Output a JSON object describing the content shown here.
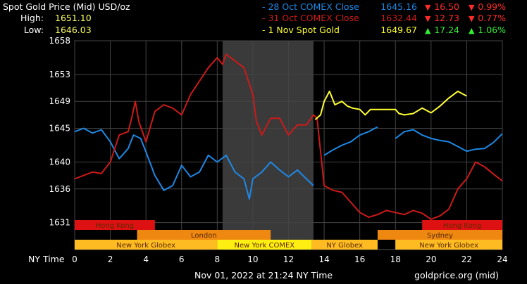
{
  "header": {
    "title": "Spot Gold Price (Mid) USD/oz",
    "high_label": "High:",
    "high_value": "1651.10",
    "low_label": "Low:",
    "low_value": "1646.03"
  },
  "legend": [
    {
      "name": "- 28 Oct COMEX Close",
      "price": "1645.16",
      "arrow": "▼",
      "change": "16.50",
      "pct_arrow": "▼",
      "pct": "0.99%",
      "color": "#1e88e5",
      "change_color": "#ff2a2a"
    },
    {
      "name": "- 31 Oct COMEX Close",
      "price": "1632.44",
      "arrow": "▼",
      "change": "12.73",
      "pct_arrow": "▼",
      "pct": "0.77%",
      "color": "#cc1a1a",
      "change_color": "#ff2a2a"
    },
    {
      "name": "- 1 Nov Spot Gold",
      "price": "1649.67",
      "arrow": "▲",
      "change": "17.24",
      "pct_arrow": "▲",
      "pct": "1.06%",
      "color": "#ffff33",
      "change_color": "#33ee33"
    }
  ],
  "footer": {
    "axis_title": "NY Time",
    "timestamp": "Nov 01, 2022 at 21:24 NY Time",
    "source": "goldprice.org (mid)"
  },
  "sessions": [
    {
      "name": "Hong Kong",
      "start": 0,
      "end": 4.5,
      "row": 0,
      "color": "#dd1111"
    },
    {
      "name": "Hong Kong",
      "start": 19.5,
      "end": 24,
      "row": 0,
      "color": "#dd1111"
    },
    {
      "name": "London",
      "start": 3.5,
      "end": 11,
      "row": 1,
      "color": "#ee8811"
    },
    {
      "name": "Sydney",
      "start": 17,
      "end": 24,
      "row": 1,
      "color": "#ee8811"
    },
    {
      "name": "New York Globex",
      "start": 0,
      "end": 8,
      "row": 2,
      "color": "#ffbb22"
    },
    {
      "name": "New York COMEX",
      "start": 8,
      "end": 13.3,
      "row": 2,
      "color": "#ffee11"
    },
    {
      "name": "NY Globex",
      "start": 13.3,
      "end": 17,
      "row": 2,
      "color": "#ffbb22"
    },
    {
      "name": "New York Globex",
      "start": 18,
      "end": 24,
      "row": 2,
      "color": "#ffbb22"
    }
  ],
  "chart_data": {
    "type": "line",
    "xlim": [
      0,
      24
    ],
    "ylim": [
      1627,
      1658
    ],
    "x_ticks": [
      0,
      2,
      4,
      6,
      8,
      10,
      12,
      14,
      16,
      18,
      20,
      22,
      24
    ],
    "y_ticks": [
      1631,
      1636,
      1640,
      1645,
      1649,
      1653,
      1658
    ],
    "comex_shade": [
      8.3,
      13.4
    ],
    "grid": true,
    "series": [
      {
        "name": "28 Oct COMEX Close",
        "color": "#1e88e5",
        "x": [
          0,
          0.5,
          1,
          1.5,
          2,
          2.5,
          3,
          3.3,
          3.7,
          4,
          4.5,
          5,
          5.5,
          6,
          6.5,
          7,
          7.5,
          8,
          8.5,
          9,
          9.5,
          9.8,
          10,
          10.5,
          11,
          11.5,
          12,
          12.5,
          13,
          13.4,
          13.6,
          14,
          14.5,
          15,
          15.5,
          16,
          16.5,
          17,
          17.2,
          18,
          18.5,
          19,
          19.5,
          20,
          20.5,
          21,
          21.5,
          22,
          22.5,
          23,
          23.5,
          24
        ],
        "y": [
          1644.5,
          1645,
          1644.3,
          1644.8,
          1643,
          1640.5,
          1642,
          1644,
          1643.5,
          1641.5,
          1638,
          1635.8,
          1636.5,
          1639.5,
          1637.8,
          1638.5,
          1641,
          1640,
          1641,
          1638.5,
          1637.5,
          1634.5,
          1637.5,
          1638.5,
          1640,
          1638.8,
          1637.8,
          1638.8,
          1637.5,
          1636.5,
          null,
          1641,
          1641.8,
          1642.5,
          1643,
          1644,
          1644.5,
          1645.2,
          null,
          1643.5,
          1644.5,
          1644.8,
          1644,
          1643.5,
          1643.2,
          1643,
          1642.3,
          1641.6,
          1641.9,
          1642,
          1642.9,
          1644.2
        ]
      },
      {
        "name": "31 Oct COMEX Close",
        "color": "#cc1a1a",
        "x": [
          0,
          0.5,
          1,
          1.5,
          2,
          2.5,
          3,
          3.2,
          3.4,
          3.6,
          4,
          4.5,
          5,
          5.5,
          6,
          6.5,
          7,
          7.5,
          8,
          8.3,
          8.5,
          9,
          9.5,
          10,
          10.2,
          10.5,
          11,
          11.5,
          12,
          12.5,
          13,
          13.4,
          13.6,
          14,
          14.5,
          15,
          15.5,
          16,
          16.5,
          17,
          17.5,
          18,
          18.5,
          19,
          19.5,
          20,
          20.5,
          21,
          21.5,
          22,
          22.5,
          23,
          23.5,
          24
        ],
        "y": [
          1637.5,
          1638,
          1638.5,
          1638.3,
          1640,
          1644,
          1644.5,
          1646.5,
          1649,
          1646,
          1643,
          1647.5,
          1648.5,
          1648,
          1647,
          1650,
          1652,
          1654,
          1655.5,
          1654.5,
          1656,
          1655,
          1654,
          1650,
          1646,
          1644,
          1646.5,
          1646.5,
          1644,
          1645.5,
          1645.5,
          1647,
          1646.5,
          1636.5,
          1635.8,
          1635.5,
          1634,
          1632.5,
          1631.8,
          1632.2,
          1632.8,
          1632.5,
          1632.2,
          1632.8,
          1632.4,
          1631.5,
          1632,
          1633,
          1636,
          1637.5,
          1640,
          1639.3,
          1638.2,
          1637.2
        ]
      },
      {
        "name": "1 Nov Spot Gold",
        "color": "#ffff33",
        "x": [
          13.5,
          13.8,
          14,
          14.3,
          14.6,
          15,
          15.3,
          15.6,
          16,
          16.3,
          16.6,
          17,
          17.5,
          18,
          18.2,
          18.5,
          19,
          19.5,
          20,
          20.5,
          21,
          21.5,
          22
        ],
        "y": [
          1646.3,
          1647,
          1649,
          1650.5,
          1648.5,
          1649,
          1648.3,
          1648,
          1647.8,
          1647,
          1647.8,
          1647.8,
          1647.8,
          1647.8,
          1647.2,
          1647,
          1647.2,
          1648,
          1647.3,
          1648.3,
          1649.5,
          1650.5,
          1649.8
        ]
      }
    ]
  }
}
